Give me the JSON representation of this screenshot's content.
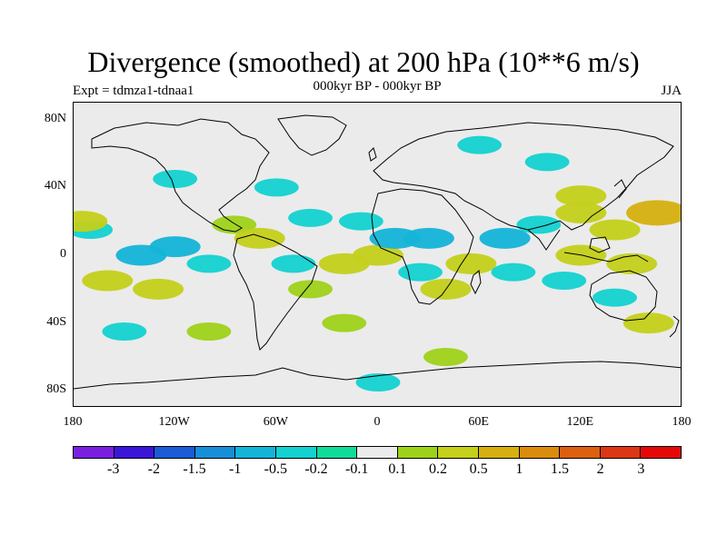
{
  "title": "Divergence (smoothed) at 200 hPa (10**6 m/s)",
  "subtitle": "000kyr BP - 000kyr BP",
  "experiment": "Expt = tdmza1-tdnaa1",
  "season": "JJA",
  "lon_labels": [
    "180",
    "120W",
    "60W",
    "0",
    "60E",
    "120E",
    "180"
  ],
  "lat_labels": [
    "80N",
    "40N",
    "0",
    "40S",
    "80S"
  ],
  "colorbar": {
    "colors": [
      "#7a1fe0",
      "#3b16d8",
      "#1a5bd6",
      "#178ed8",
      "#14b4d8",
      "#13d2d0",
      "#10dc9a",
      "#ebebeb",
      "#9ed21a",
      "#c4d01a",
      "#d6b010",
      "#dc8c0c",
      "#dc6010",
      "#dc3614",
      "#e60808"
    ],
    "labels": [
      "-3",
      "-2",
      "-1.5",
      "-1",
      "-0.5",
      "-0.2",
      "-0.1",
      "0.1",
      "0.2",
      "0.5",
      "1",
      "1.5",
      "2",
      "3"
    ]
  },
  "chart_data": {
    "type": "heatmap",
    "title": "Divergence (smoothed) at 200 hPa (10**6 m/s)",
    "subtitle": "000kyr BP - 000kyr BP",
    "variable": "Divergence at 200 hPa",
    "units": "10**6 m/s",
    "season": "JJA",
    "x_range": [
      -180,
      180
    ],
    "y_range": [
      -90,
      90
    ],
    "contour_levels": [
      -3,
      -2,
      -1.5,
      -1,
      -0.5,
      -0.2,
      -0.1,
      0.1,
      0.2,
      0.5,
      1,
      1.5,
      2,
      3
    ],
    "anomalies": [
      {
        "lon": -140,
        "lat": 0,
        "value": -0.5
      },
      {
        "lon": -120,
        "lat": 5,
        "value": -0.5
      },
      {
        "lon": -100,
        "lat": -5,
        "value": -0.2
      },
      {
        "lon": -160,
        "lat": -15,
        "value": 0.5
      },
      {
        "lon": -130,
        "lat": -20,
        "value": 0.5
      },
      {
        "lon": -170,
        "lat": 15,
        "value": -0.2
      },
      {
        "lon": -175,
        "lat": 20,
        "value": 0.5
      },
      {
        "lon": -85,
        "lat": 18,
        "value": 0.2
      },
      {
        "lon": -70,
        "lat": 10,
        "value": 0.5
      },
      {
        "lon": -60,
        "lat": 40,
        "value": -0.2
      },
      {
        "lon": -40,
        "lat": 22,
        "value": -0.2
      },
      {
        "lon": -50,
        "lat": -5,
        "value": -0.2
      },
      {
        "lon": -40,
        "lat": -20,
        "value": 0.2
      },
      {
        "lon": -20,
        "lat": -5,
        "value": 0.5
      },
      {
        "lon": -10,
        "lat": 20,
        "value": -0.2
      },
      {
        "lon": 0,
        "lat": 0,
        "value": 0.5
      },
      {
        "lon": 10,
        "lat": 10,
        "value": -0.5
      },
      {
        "lon": 30,
        "lat": 10,
        "value": -0.5
      },
      {
        "lon": 40,
        "lat": -20,
        "value": 0.5
      },
      {
        "lon": 25,
        "lat": -10,
        "value": -0.2
      },
      {
        "lon": 55,
        "lat": -5,
        "value": 0.5
      },
      {
        "lon": 75,
        "lat": 10,
        "value": -0.5
      },
      {
        "lon": 80,
        "lat": -10,
        "value": -0.2
      },
      {
        "lon": 95,
        "lat": 18,
        "value": -0.2
      },
      {
        "lon": 120,
        "lat": 25,
        "value": 0.5
      },
      {
        "lon": 120,
        "lat": 35,
        "value": 0.5
      },
      {
        "lon": 140,
        "lat": 15,
        "value": 0.5
      },
      {
        "lon": 165,
        "lat": 25,
        "value": 1
      },
      {
        "lon": 120,
        "lat": 0,
        "value": 0.5
      },
      {
        "lon": 150,
        "lat": -5,
        "value": 0.5
      },
      {
        "lon": 110,
        "lat": -15,
        "value": -0.2
      },
      {
        "lon": 140,
        "lat": -25,
        "value": -0.2
      },
      {
        "lon": 160,
        "lat": -40,
        "value": 0.5
      },
      {
        "lon": -100,
        "lat": -45,
        "value": 0.2
      },
      {
        "lon": -150,
        "lat": -45,
        "value": -0.2
      },
      {
        "lon": -20,
        "lat": -40,
        "value": 0.2
      },
      {
        "lon": 40,
        "lat": -60,
        "value": 0.2
      },
      {
        "lon": 0,
        "lat": -75,
        "value": -0.2
      },
      {
        "lon": -120,
        "lat": 45,
        "value": -0.2
      },
      {
        "lon": 60,
        "lat": 65,
        "value": -0.2
      },
      {
        "lon": 100,
        "lat": 55,
        "value": -0.2
      }
    ]
  }
}
